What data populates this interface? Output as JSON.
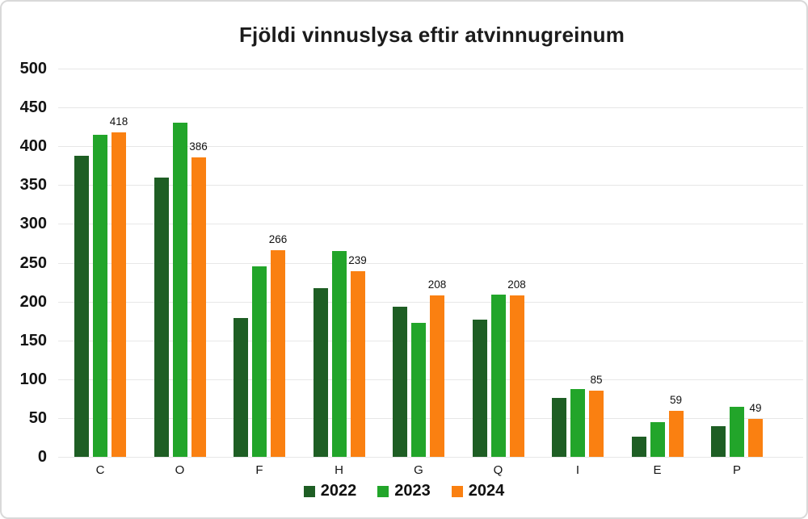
{
  "title": "Fjöldi vinnuslysa eftir atvinnugreinum",
  "colors": {
    "series_2022": "#1e5e24",
    "series_2023": "#22a52a",
    "series_2024": "#fa8011",
    "gridline": "#e7e7e7",
    "text": "#141414",
    "background": "#ffffff",
    "card_border": "#d9d9d9"
  },
  "chart_data": {
    "type": "bar",
    "title": "Fjöldi vinnuslysa eftir atvinnugreinum",
    "categories": [
      "C",
      "O",
      "F",
      "H",
      "G",
      "Q",
      "I",
      "E",
      "P"
    ],
    "series": [
      {
        "name": "2022",
        "color": "#1e5e24",
        "values": [
          388,
          360,
          179,
          217,
          193,
          177,
          76,
          26,
          39
        ],
        "data_labels": false
      },
      {
        "name": "2023",
        "color": "#22a52a",
        "values": [
          415,
          430,
          245,
          265,
          173,
          209,
          87,
          45,
          64
        ],
        "data_labels": false
      },
      {
        "name": "2024",
        "color": "#fa8011",
        "values": [
          418,
          386,
          266,
          239,
          208,
          208,
          85,
          59,
          49
        ],
        "data_labels": true
      }
    ],
    "xlabel": "",
    "ylabel": "",
    "ylim": [
      0,
      500
    ],
    "yticks": [
      0,
      50,
      100,
      150,
      200,
      250,
      300,
      350,
      400,
      450,
      500
    ],
    "grid": true,
    "legend_position": "bottom",
    "legend": [
      "2022",
      "2023",
      "2024"
    ]
  }
}
